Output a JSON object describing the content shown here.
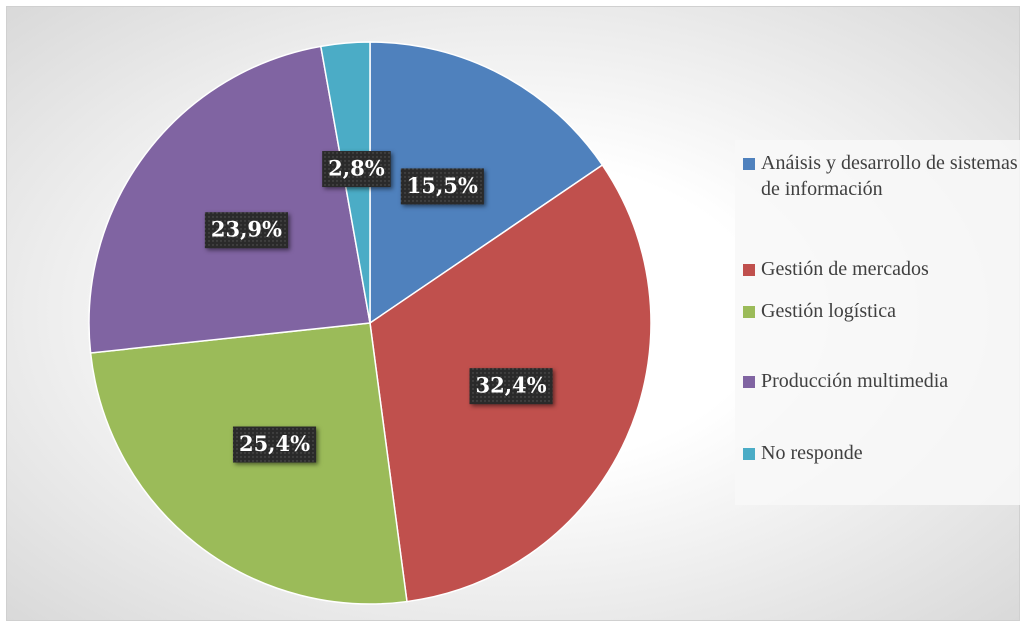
{
  "chart_data": {
    "type": "pie",
    "categories": [
      "Anáisis y desarrollo de sistemas de información",
      "Gestión de mercados",
      "Gestión logística",
      "Producción multimedia",
      "No responde"
    ],
    "values": [
      15.5,
      32.4,
      25.4,
      23.9,
      2.8
    ],
    "value_labels": [
      "15,5%",
      "32,4%",
      "25,4%",
      "23,9%",
      "2,8%"
    ],
    "colors": [
      "#4f81bd",
      "#c0504d",
      "#9bbb59",
      "#8064a2",
      "#4bacc6"
    ],
    "legend": "right"
  }
}
